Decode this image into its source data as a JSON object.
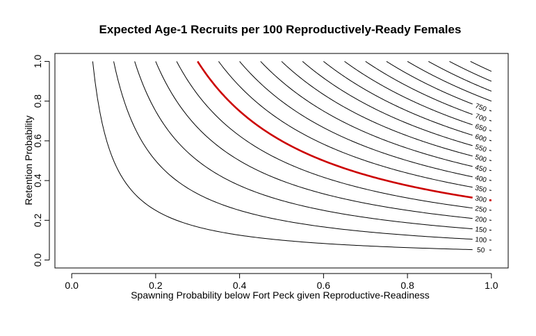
{
  "chart_data": {
    "type": "contour",
    "title": "Expected Age-1 Recruits per 100 Reproductively-Ready Females",
    "xlabel": "Spawning Probability below Fort Peck given Reproductive-Readiness",
    "ylabel": "Retention Probability",
    "xlim": [
      -0.04,
      1.04
    ],
    "ylim": [
      -0.04,
      1.04
    ],
    "x_ticks": [
      0.0,
      0.2,
      0.4,
      0.6,
      0.8,
      1.0
    ],
    "x_tick_labels": [
      "0.0",
      "0.2",
      "0.4",
      "0.6",
      "0.8",
      "1.0"
    ],
    "y_ticks": [
      0.0,
      0.2,
      0.4,
      0.6,
      0.8,
      1.0
    ],
    "y_tick_labels": [
      "0.0",
      "0.2",
      "0.4",
      "0.6",
      "0.8",
      "1.0"
    ],
    "surface": "recruits = k * x * y",
    "k": 1000,
    "levels": [
      50,
      100,
      150,
      200,
      250,
      300,
      350,
      400,
      450,
      500,
      550,
      600,
      650,
      700,
      750,
      800,
      850,
      900,
      950
    ],
    "level_labels": [
      "50",
      "100",
      "150",
      "200",
      "250",
      "300",
      "350",
      "400",
      "450",
      "500",
      "550",
      "600",
      "650",
      "700",
      "750",
      "",
      "",
      "",
      ""
    ],
    "highlight_level": 300,
    "highlight_color": "#cc0000",
    "line_color": "#000000",
    "grid": false
  }
}
